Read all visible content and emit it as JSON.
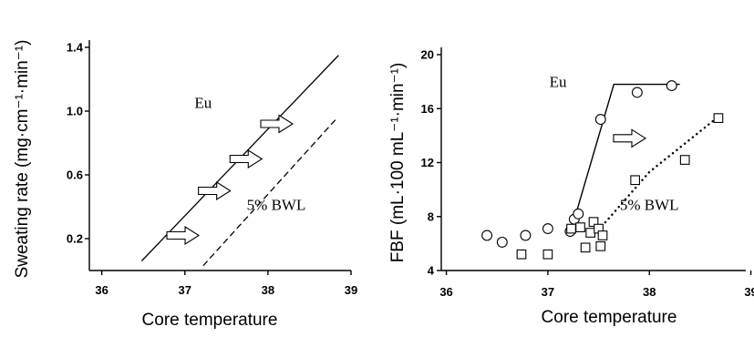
{
  "chart_data": [
    {
      "type": "line",
      "xlabel": "Core temperature",
      "ylabel": "Sweating rate (mg·cm⁻¹·min⁻¹)",
      "xlim": [
        35.85,
        39.0
      ],
      "ylim": [
        0.0,
        1.4
      ],
      "xticks": [
        "36",
        "37",
        "38",
        "39"
      ],
      "yticks": [
        "0.2",
        "0.6",
        "1.0",
        "1.4"
      ],
      "series": [
        {
          "name": "Eu",
          "style": "solid",
          "x": [
            36.48,
            38.85
          ],
          "y": [
            0.06,
            1.35
          ]
        },
        {
          "name": "5% BWL",
          "style": "dashed",
          "x": [
            37.22,
            38.82
          ],
          "y": [
            0.03,
            0.95
          ]
        }
      ],
      "annotations": [
        {
          "text": "Eu",
          "x": 37.22,
          "y": 1.02
        },
        {
          "text": "5% BWL",
          "x": 38.1,
          "y": 0.38
        }
      ],
      "arrows": [
        {
          "x": 36.97,
          "y": 0.22
        },
        {
          "x": 37.35,
          "y": 0.5
        },
        {
          "x": 37.73,
          "y": 0.7
        },
        {
          "x": 38.1,
          "y": 0.92
        }
      ]
    },
    {
      "type": "scatter",
      "xlabel": "Core temperature",
      "ylabel": "FBF (mL·100 mL⁻¹·min⁻¹)",
      "xlim": [
        35.95,
        38.95
      ],
      "ylim": [
        4,
        20
      ],
      "xticks": [
        "36",
        "37",
        "38",
        "39"
      ],
      "yticks": [
        "4",
        "8",
        "12",
        "16",
        "20"
      ],
      "series": [
        {
          "name": "Eu",
          "marker": "circle",
          "x": [
            36.4,
            36.55,
            36.78,
            37.0,
            37.22,
            37.26,
            37.3,
            37.52,
            37.88,
            38.22
          ],
          "y": [
            6.6,
            6.1,
            6.6,
            7.1,
            6.9,
            7.8,
            8.2,
            15.2,
            17.2,
            17.7
          ],
          "fit": {
            "style": "solid",
            "x": [
              37.23,
              37.65,
              38.3
            ],
            "y": [
              7.0,
              17.8,
              17.8
            ]
          }
        },
        {
          "name": "5% BWL",
          "marker": "square",
          "x": [
            36.74,
            37.0,
            37.23,
            37.32,
            37.37,
            37.42,
            37.45,
            37.5,
            37.52,
            37.54,
            37.86,
            38.35,
            38.68
          ],
          "y": [
            5.2,
            5.2,
            7.1,
            7.2,
            5.7,
            6.8,
            7.6,
            7.1,
            5.8,
            6.6,
            10.7,
            12.2,
            15.3
          ],
          "fit": {
            "style": "dotted",
            "x": [
              37.5,
              38.0,
              38.68
            ],
            "y": [
              7.0,
              11.3,
              15.4
            ]
          }
        }
      ],
      "annotations": [
        {
          "text": "Eu",
          "x": 37.1,
          "y": 17.6
        },
        {
          "text": "5% BWL",
          "x": 38.0,
          "y": 8.5
        }
      ],
      "arrows": [
        {
          "x": 37.8,
          "y": 13.8
        }
      ]
    }
  ]
}
